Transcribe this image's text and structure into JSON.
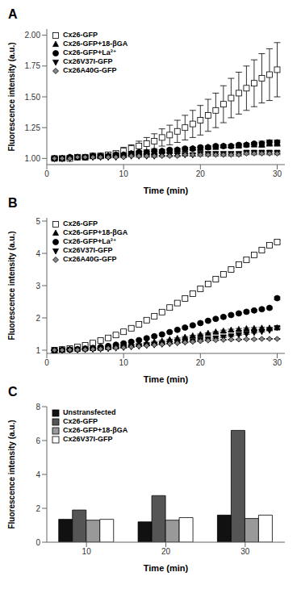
{
  "chart_data": [
    {
      "type": "scatter",
      "title": "A",
      "xlabel": "Time (min)",
      "ylabel": "Fluorescence intensity (a.u.)",
      "xlim": [
        0,
        31
      ],
      "xticks": [
        0,
        10,
        20,
        30
      ],
      "ylim": [
        0.95,
        2.05
      ],
      "yticks": [
        {
          "value": 1.0,
          "label": "1.00"
        },
        {
          "value": 1.25,
          "label": "1.25"
        },
        {
          "value": 1.5,
          "label": "1.50"
        },
        {
          "value": 1.75,
          "label": "1.75"
        },
        {
          "value": 2.0,
          "label": "2.00"
        }
      ],
      "grid": false,
      "legend": "upper left",
      "x": [
        1,
        2,
        3,
        4,
        5,
        6,
        7,
        8,
        9,
        10,
        11,
        12,
        13,
        14,
        15,
        16,
        17,
        18,
        19,
        20,
        21,
        22,
        23,
        24,
        25,
        26,
        27,
        28,
        29,
        30
      ],
      "series": [
        {
          "name": "Cx26-GFP",
          "color": "#ffffff",
          "marker": "square",
          "values": [
            1.0,
            1.0,
            1.0,
            1.01,
            1.01,
            1.02,
            1.02,
            1.03,
            1.04,
            1.06,
            1.08,
            1.1,
            1.12,
            1.14,
            1.17,
            1.19,
            1.22,
            1.25,
            1.28,
            1.31,
            1.35,
            1.39,
            1.44,
            1.49,
            1.53,
            1.57,
            1.61,
            1.65,
            1.68,
            1.72
          ],
          "yerr": [
            0.01,
            0.01,
            0.01,
            0.01,
            0.01,
            0.01,
            0.02,
            0.02,
            0.02,
            0.03,
            0.03,
            0.04,
            0.05,
            0.06,
            0.07,
            0.08,
            0.09,
            0.1,
            0.11,
            0.12,
            0.13,
            0.14,
            0.15,
            0.16,
            0.17,
            0.18,
            0.19,
            0.2,
            0.21,
            0.22
          ]
        },
        {
          "name": "Cx26-GFP+18-βGA",
          "color": "#000000",
          "marker": "triangle",
          "values": [
            1.0,
            1.0,
            1.01,
            1.01,
            1.01,
            1.02,
            1.02,
            1.02,
            1.03,
            1.03,
            1.04,
            1.04,
            1.05,
            1.05,
            1.06,
            1.06,
            1.07,
            1.07,
            1.08,
            1.08,
            1.09,
            1.09,
            1.1,
            1.1,
            1.1,
            1.11,
            1.11,
            1.11,
            1.12,
            1.12
          ],
          "yerr": [
            0.01,
            0.01,
            0.01,
            0.01,
            0.01,
            0.01,
            0.01,
            0.01,
            0.01,
            0.01,
            0.01,
            0.01,
            0.01,
            0.01,
            0.01,
            0.01,
            0.01,
            0.01,
            0.01,
            0.01,
            0.01,
            0.01,
            0.01,
            0.01,
            0.01,
            0.01,
            0.01,
            0.02,
            0.02,
            0.02
          ]
        },
        {
          "name": "Cx26-GFP+La³⁺",
          "color": "#000000",
          "marker": "circle",
          "values": [
            1.0,
            1.0,
            1.01,
            1.01,
            1.01,
            1.02,
            1.02,
            1.02,
            1.03,
            1.03,
            1.04,
            1.05,
            1.05,
            1.06,
            1.06,
            1.07,
            1.07,
            1.08,
            1.08,
            1.09,
            1.09,
            1.1,
            1.1,
            1.1,
            1.11,
            1.11,
            1.12,
            1.12,
            1.13,
            1.13
          ],
          "yerr": [
            0.01,
            0.01,
            0.01,
            0.01,
            0.01,
            0.01,
            0.01,
            0.01,
            0.01,
            0.01,
            0.01,
            0.01,
            0.01,
            0.01,
            0.01,
            0.01,
            0.01,
            0.01,
            0.01,
            0.01,
            0.01,
            0.01,
            0.01,
            0.01,
            0.01,
            0.01,
            0.01,
            0.02,
            0.02,
            0.02
          ]
        },
        {
          "name": "Cx26V37I-GFP",
          "color": "#000000",
          "marker": "triangle_down",
          "values": [
            1.0,
            1.0,
            1.0,
            1.01,
            1.01,
            1.01,
            1.01,
            1.01,
            1.01,
            1.02,
            1.02,
            1.02,
            1.02,
            1.02,
            1.03,
            1.03,
            1.03,
            1.03,
            1.03,
            1.04,
            1.04,
            1.04,
            1.04,
            1.04,
            1.04,
            1.05,
            1.05,
            1.05,
            1.05,
            1.05
          ],
          "yerr": [
            0.005,
            0.005,
            0.005,
            0.005,
            0.005,
            0.005,
            0.005,
            0.005,
            0.005,
            0.005,
            0.005,
            0.01,
            0.01,
            0.01,
            0.01,
            0.01,
            0.01,
            0.01,
            0.01,
            0.01,
            0.01,
            0.01,
            0.01,
            0.01,
            0.01,
            0.01,
            0.01,
            0.01,
            0.01,
            0.01
          ]
        },
        {
          "name": "Cx26A40G-GFP",
          "color": "#888888",
          "marker": "diamond",
          "values": [
            1.0,
            1.0,
            1.0,
            1.01,
            1.01,
            1.01,
            1.01,
            1.01,
            1.01,
            1.01,
            1.02,
            1.02,
            1.02,
            1.02,
            1.02,
            1.02,
            1.02,
            1.03,
            1.03,
            1.03,
            1.03,
            1.03,
            1.03,
            1.03,
            1.03,
            1.04,
            1.04,
            1.04,
            1.04,
            1.04
          ],
          "yerr": [
            0.005,
            0.005,
            0.005,
            0.005,
            0.005,
            0.005,
            0.005,
            0.005,
            0.005,
            0.005,
            0.005,
            0.005,
            0.005,
            0.005,
            0.005,
            0.005,
            0.005,
            0.005,
            0.01,
            0.01,
            0.01,
            0.01,
            0.01,
            0.01,
            0.01,
            0.01,
            0.01,
            0.01,
            0.01,
            0.01
          ]
        }
      ]
    },
    {
      "type": "scatter",
      "title": "B",
      "xlabel": "Time (min)",
      "ylabel": "Fluorescence intensity (a.u.)",
      "xlim": [
        0,
        31
      ],
      "xticks": [
        0,
        10,
        20,
        30
      ],
      "ylim": [
        0.9,
        5.1
      ],
      "yticks": [
        1,
        2,
        3,
        4,
        5
      ],
      "grid": false,
      "legend": "upper left",
      "x": [
        1,
        2,
        3,
        4,
        5,
        6,
        7,
        8,
        9,
        10,
        11,
        12,
        13,
        14,
        15,
        16,
        17,
        18,
        19,
        20,
        21,
        22,
        23,
        24,
        25,
        26,
        27,
        28,
        29,
        30
      ],
      "series": [
        {
          "name": "Cx26-GFP",
          "color": "#ffffff",
          "marker": "square",
          "values": [
            1.0,
            1.02,
            1.05,
            1.1,
            1.15,
            1.22,
            1.3,
            1.38,
            1.47,
            1.57,
            1.68,
            1.8,
            1.93,
            2.05,
            2.18,
            2.32,
            2.46,
            2.6,
            2.75,
            2.9,
            3.05,
            3.2,
            3.35,
            3.5,
            3.65,
            3.8,
            3.95,
            4.1,
            4.25,
            4.35
          ],
          "yerr": [
            0.01,
            0.01,
            0.02,
            0.02,
            0.03,
            0.03,
            0.04,
            0.04,
            0.05,
            0.05,
            0.05,
            0.05,
            0.05,
            0.05,
            0.05,
            0.05,
            0.05,
            0.05,
            0.05,
            0.05,
            0.05,
            0.05,
            0.05,
            0.05,
            0.05,
            0.05,
            0.05,
            0.05,
            0.05,
            0.05
          ]
        },
        {
          "name": "Cx26-GFP+18-βGA",
          "color": "#000000",
          "marker": "triangle",
          "values": [
            1.0,
            1.01,
            1.02,
            1.03,
            1.04,
            1.05,
            1.06,
            1.08,
            1.1,
            1.13,
            1.16,
            1.19,
            1.22,
            1.25,
            1.28,
            1.32,
            1.36,
            1.4,
            1.44,
            1.48,
            1.52,
            1.56,
            1.59,
            1.62,
            1.64,
            1.66,
            1.67,
            1.68,
            1.68,
            1.69
          ],
          "yerr": [
            0.01,
            0.01,
            0.01,
            0.01,
            0.01,
            0.01,
            0.01,
            0.01,
            0.01,
            0.01,
            0.01,
            0.01,
            0.02,
            0.02,
            0.02,
            0.02,
            0.02,
            0.02,
            0.02,
            0.02,
            0.02,
            0.02,
            0.03,
            0.03,
            0.03,
            0.03,
            0.03,
            0.03,
            0.03,
            0.03
          ]
        },
        {
          "name": "Cx26-GFP+La³⁺",
          "color": "#000000",
          "marker": "circle",
          "values": [
            1.0,
            1.01,
            1.02,
            1.03,
            1.05,
            1.07,
            1.1,
            1.13,
            1.17,
            1.21,
            1.26,
            1.31,
            1.37,
            1.43,
            1.49,
            1.56,
            1.63,
            1.7,
            1.77,
            1.84,
            1.91,
            1.97,
            2.03,
            2.09,
            2.14,
            2.19,
            2.23,
            2.27,
            2.31,
            2.61
          ],
          "yerr": [
            0.01,
            0.01,
            0.01,
            0.01,
            0.01,
            0.01,
            0.02,
            0.02,
            0.02,
            0.03,
            0.03,
            0.03,
            0.03,
            0.03,
            0.03,
            0.03,
            0.03,
            0.03,
            0.03,
            0.03,
            0.03,
            0.03,
            0.03,
            0.03,
            0.03,
            0.03,
            0.03,
            0.03,
            0.03,
            0.04
          ]
        },
        {
          "name": "Cx26V37I-GFP",
          "color": "#000000",
          "marker": "triangle_down",
          "values": [
            1.0,
            1.0,
            1.01,
            1.01,
            1.02,
            1.03,
            1.04,
            1.05,
            1.07,
            1.09,
            1.11,
            1.13,
            1.15,
            1.17,
            1.19,
            1.21,
            1.24,
            1.26,
            1.29,
            1.32,
            1.35,
            1.38,
            1.41,
            1.44,
            1.48,
            1.51,
            1.55,
            1.58,
            1.62,
            1.7
          ],
          "yerr": [
            0.005,
            0.005,
            0.005,
            0.005,
            0.01,
            0.01,
            0.01,
            0.01,
            0.01,
            0.01,
            0.01,
            0.01,
            0.01,
            0.01,
            0.01,
            0.01,
            0.01,
            0.01,
            0.01,
            0.02,
            0.02,
            0.02,
            0.02,
            0.02,
            0.02,
            0.02,
            0.02,
            0.02,
            0.02,
            0.03
          ]
        },
        {
          "name": "Cx26A40G-GFP",
          "color": "#888888",
          "marker": "diamond",
          "values": [
            1.0,
            1.0,
            1.01,
            1.01,
            1.02,
            1.03,
            1.04,
            1.06,
            1.07,
            1.08,
            1.1,
            1.12,
            1.14,
            1.16,
            1.18,
            1.2,
            1.22,
            1.24,
            1.26,
            1.28,
            1.3,
            1.31,
            1.32,
            1.33,
            1.33,
            1.34,
            1.34,
            1.35,
            1.35,
            1.35
          ],
          "yerr": [
            0.005,
            0.005,
            0.005,
            0.005,
            0.005,
            0.005,
            0.005,
            0.01,
            0.01,
            0.01,
            0.01,
            0.01,
            0.01,
            0.01,
            0.01,
            0.01,
            0.01,
            0.01,
            0.01,
            0.01,
            0.01,
            0.01,
            0.01,
            0.01,
            0.01,
            0.01,
            0.01,
            0.01,
            0.01,
            0.01
          ]
        }
      ]
    },
    {
      "type": "bar",
      "title": "C",
      "xlabel": "Time (min)",
      "ylabel": "Fluorescence intensity (a.u.)",
      "categories": [
        "10",
        "20",
        "30"
      ],
      "ylim": [
        0,
        8
      ],
      "yticks": [
        0,
        2,
        4,
        6,
        8
      ],
      "grid": false,
      "legend": "upper left",
      "series": [
        {
          "name": "Unstransfected",
          "color": "#111111",
          "values": [
            1.35,
            1.2,
            1.6
          ]
        },
        {
          "name": "Cx26-GFP",
          "color": "#555555",
          "values": [
            1.9,
            2.75,
            6.6
          ]
        },
        {
          "name": "Cx26-GFP+18-βGA",
          "color": "#999999",
          "values": [
            1.3,
            1.3,
            1.4
          ]
        },
        {
          "name": "Cx26V37I-GFP",
          "color": "#ffffff",
          "values": [
            1.35,
            1.45,
            1.6
          ]
        }
      ]
    }
  ]
}
